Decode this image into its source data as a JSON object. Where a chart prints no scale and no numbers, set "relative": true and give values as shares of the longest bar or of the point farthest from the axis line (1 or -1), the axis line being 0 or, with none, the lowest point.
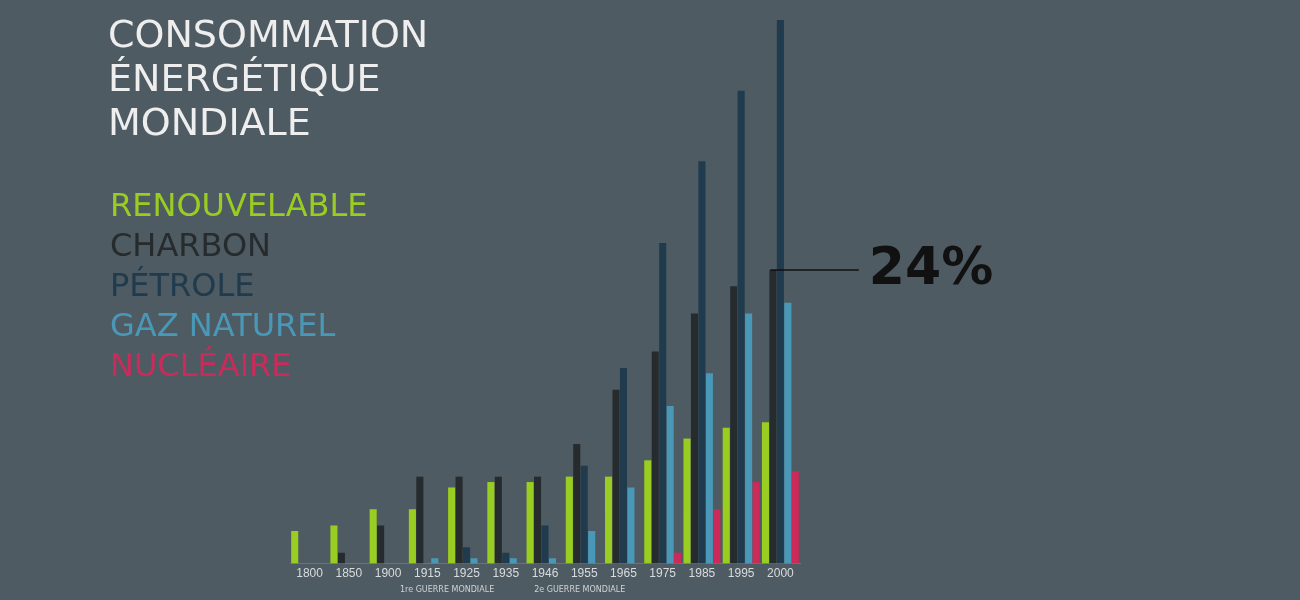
{
  "chart_data": {
    "type": "bar",
    "title": "CONSOMMATION ÉNERGÉTIQUE MONDIALE",
    "relative": true,
    "legend": "top left",
    "grid": false,
    "categories": [
      "1800",
      "1850",
      "1900",
      "1915",
      "1925",
      "1935",
      "1946",
      "1955",
      "1965",
      "1975",
      "1985",
      "1995",
      "2000"
    ],
    "series": [
      {
        "name": "RENOUVELABLE",
        "color": "#9acd22",
        "values": [
          0.06,
          0.07,
          0.1,
          0.1,
          0.14,
          0.15,
          0.15,
          0.16,
          0.16,
          0.19,
          0.23,
          0.25,
          0.26
        ]
      },
      {
        "name": "CHARBON",
        "color": "#262b2e",
        "values": [
          0,
          0.02,
          0.07,
          0.16,
          0.16,
          0.16,
          0.16,
          0.22,
          0.32,
          0.39,
          0.46,
          0.51,
          0.54
        ]
      },
      {
        "name": "PÉTROLE",
        "color": "#203b4d",
        "values": [
          0,
          0,
          0,
          0,
          0.03,
          0.02,
          0.07,
          0.18,
          0.36,
          0.59,
          0.74,
          0.87,
          1
        ]
      },
      {
        "name": "GAZ NATUREL",
        "color": "#4a98b8",
        "values": [
          0,
          0,
          0,
          0.01,
          0.01,
          0.01,
          0.01,
          0.06,
          0.14,
          0.29,
          0.35,
          0.46,
          0.48
        ]
      },
      {
        "name": "NUCLÉAIRE",
        "color": "#cc2a5a",
        "values": [
          0,
          0,
          0,
          0,
          0,
          0,
          0,
          0,
          0,
          0.02,
          0.1,
          0.15,
          0.17
        ]
      }
    ],
    "annotations": [
      {
        "text": "24%",
        "x": "2000",
        "y": 0.54
      },
      "1re GUERRE MONDIALE",
      "2e GUERRE MONDIALE"
    ]
  }
}
